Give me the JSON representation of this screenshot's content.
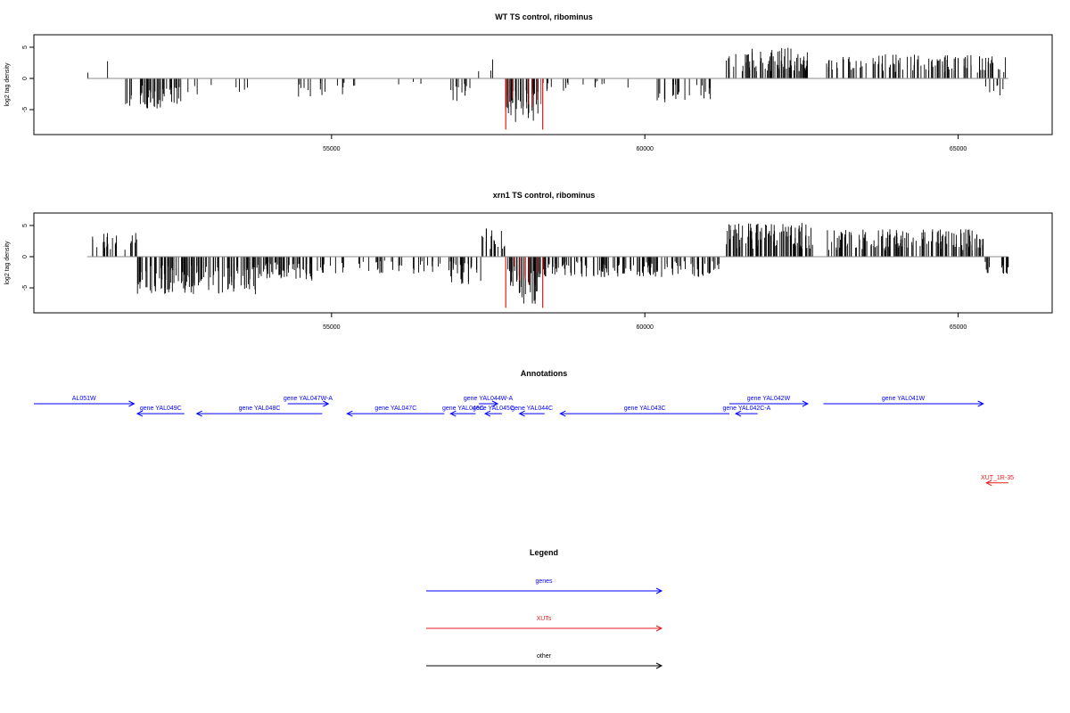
{
  "chart_data": [
    {
      "type": "bar",
      "title": "WT TS control, ribominus",
      "xlabel": "",
      "ylabel": "log2 tag density",
      "xlim": [
        50250,
        66500
      ],
      "ylim": [
        -9,
        7
      ],
      "xticks": [
        55000,
        60000,
        65000
      ],
      "yticks": [
        5,
        0,
        -5
      ],
      "segments": [
        {
          "start": 51100,
          "end": 51700,
          "value": 3.5,
          "density": 0.04
        },
        {
          "start": 51700,
          "end": 52600,
          "value": -4.5,
          "density": 0.75
        },
        {
          "start": 52600,
          "end": 53800,
          "value": -2.5,
          "density": 0.1
        },
        {
          "start": 54100,
          "end": 55200,
          "value": -2.8,
          "density": 0.18
        },
        {
          "start": 55200,
          "end": 56500,
          "value": -1.5,
          "density": 0.06
        },
        {
          "start": 56900,
          "end": 57300,
          "value": -3.5,
          "density": 0.5
        },
        {
          "start": 57300,
          "end": 57700,
          "value": 3.5,
          "density": 0.12
        },
        {
          "start": 57700,
          "end": 58300,
          "value": -6.5,
          "density": 0.95
        },
        {
          "start": 58300,
          "end": 58800,
          "value": -2.0,
          "density": 0.25
        },
        {
          "start": 58800,
          "end": 60000,
          "value": -1.5,
          "density": 0.1
        },
        {
          "start": 60000,
          "end": 61100,
          "value": -3.5,
          "density": 0.3
        },
        {
          "start": 61300,
          "end": 62600,
          "value": 4.5,
          "density": 0.9
        },
        {
          "start": 62900,
          "end": 65800,
          "value": 3.5,
          "density": 0.55
        },
        {
          "start": 65400,
          "end": 65750,
          "value": -2.5,
          "density": 0.3
        }
      ],
      "highlight": {
        "start": 57780,
        "end": 58370,
        "value": -8.2,
        "color": "#e41a1c"
      }
    },
    {
      "type": "bar",
      "title": "xrn1 TS control, ribominus",
      "xlabel": "",
      "ylabel": "log2 tag density",
      "xlim": [
        50250,
        66500
      ],
      "ylim": [
        -9,
        7
      ],
      "xticks": [
        55000,
        60000,
        65000
      ],
      "yticks": [
        5,
        0,
        -5
      ],
      "segments": [
        {
          "start": 51100,
          "end": 51900,
          "value": 3.5,
          "density": 0.45
        },
        {
          "start": 51900,
          "end": 53800,
          "value": -5.5,
          "density": 0.95
        },
        {
          "start": 53800,
          "end": 54800,
          "value": -3.5,
          "density": 0.85
        },
        {
          "start": 54800,
          "end": 57100,
          "value": -2.5,
          "density": 0.3
        },
        {
          "start": 56900,
          "end": 57400,
          "value": -4.0,
          "density": 0.7
        },
        {
          "start": 57400,
          "end": 57800,
          "value": 4.5,
          "density": 0.6
        },
        {
          "start": 57800,
          "end": 58300,
          "value": -7.0,
          "density": 0.98
        },
        {
          "start": 58300,
          "end": 61200,
          "value": -3.0,
          "density": 0.7
        },
        {
          "start": 61300,
          "end": 62700,
          "value": 5.0,
          "density": 0.98
        },
        {
          "start": 62900,
          "end": 65400,
          "value": 4.0,
          "density": 0.8
        },
        {
          "start": 65400,
          "end": 65800,
          "value": -2.5,
          "density": 0.5
        }
      ],
      "highlight": {
        "start": 57780,
        "end": 58370,
        "value": -8.2,
        "color": "#e41a1c"
      }
    }
  ],
  "annotations": {
    "title": "Annotations",
    "items": [
      {
        "label": "AL051W",
        "start": 50250,
        "end": 51850,
        "strand": "+",
        "row": 0,
        "color": "#0000ff"
      },
      {
        "label": "gene YAL049C",
        "start": 51900,
        "end": 52650,
        "strand": "-",
        "row": 1,
        "color": "#0000ff"
      },
      {
        "label": "gene YAL048C",
        "start": 52850,
        "end": 54850,
        "strand": "-",
        "row": 1,
        "color": "#0000ff"
      },
      {
        "label": "gene YAL047W-A",
        "start": 54300,
        "end": 54950,
        "strand": "+",
        "row": 0,
        "color": "#0000ff"
      },
      {
        "label": "gene YAL047C",
        "start": 55250,
        "end": 56800,
        "strand": "-",
        "row": 1,
        "color": "#0000ff"
      },
      {
        "label": "gene YAL046C",
        "start": 56900,
        "end": 57300,
        "strand": "-",
        "row": 1,
        "color": "#0000ff"
      },
      {
        "label": "gene YAL044W-A",
        "start": 57350,
        "end": 57650,
        "strand": "+",
        "row": 0,
        "color": "#0000ff"
      },
      {
        "label": "gene YAL045C",
        "start": 57450,
        "end": 57720,
        "strand": "-",
        "row": 1,
        "color": "#0000ff"
      },
      {
        "label": "gene YAL044C",
        "start": 58000,
        "end": 58400,
        "strand": "-",
        "row": 1,
        "color": "#0000ff"
      },
      {
        "label": "gene YAL043C",
        "start": 58650,
        "end": 61350,
        "strand": "-",
        "row": 1,
        "color": "#0000ff"
      },
      {
        "label": "gene YAL042C-A",
        "start": 61450,
        "end": 61800,
        "strand": "-",
        "row": 1,
        "color": "#0000ff"
      },
      {
        "label": "gene YAL042W",
        "start": 61350,
        "end": 62600,
        "strand": "+",
        "row": 0,
        "color": "#0000ff"
      },
      {
        "label": "gene YAL041W",
        "start": 62850,
        "end": 65400,
        "strand": "+",
        "row": 0,
        "color": "#0000ff"
      },
      {
        "label": "XUT_1R-35",
        "start": 65450,
        "end": 65800,
        "strand": "-",
        "row": 8,
        "color": "#e41a1c"
      }
    ]
  },
  "legend": {
    "title": "Legend",
    "items": [
      {
        "label": "genes",
        "color": "#0000ff"
      },
      {
        "label": "XUTs",
        "color": "#e41a1c"
      },
      {
        "label": "other",
        "color": "#000000"
      }
    ]
  }
}
